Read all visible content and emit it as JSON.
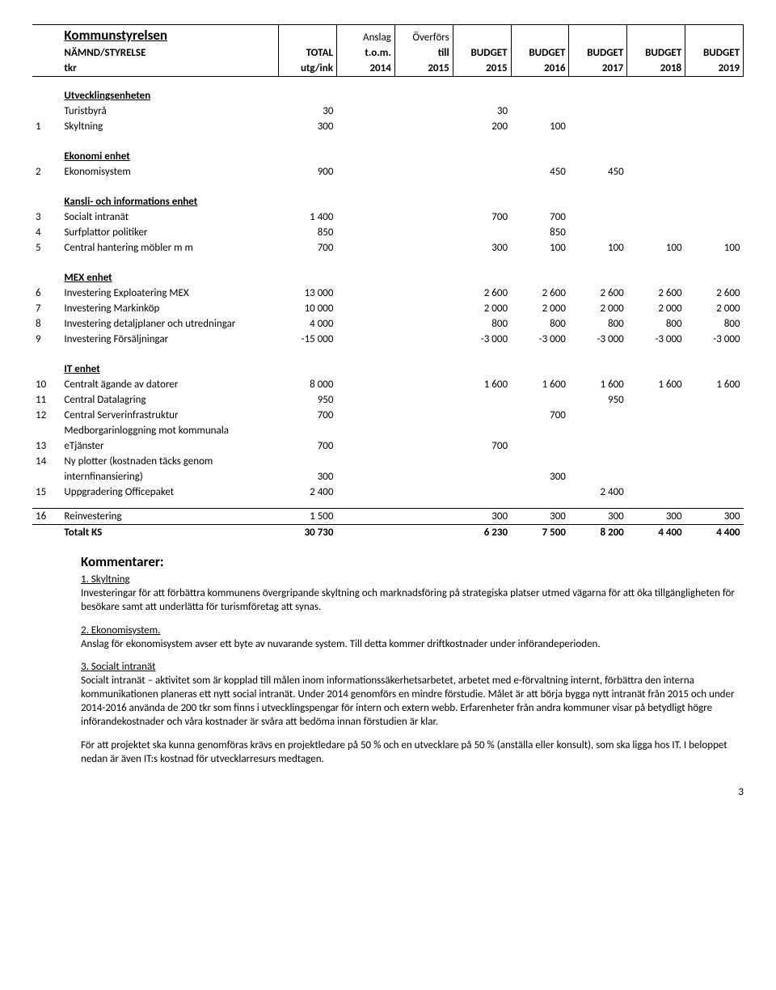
{
  "header": {
    "title": "Kommunstyrelsen",
    "col_labels": {
      "namnd": "NÄMND/STYRELSE",
      "total": "TOTAL",
      "anslag": "Anslag",
      "tom": "t.o.m.",
      "overfors": "Överförs",
      "till": "till",
      "budget": "BUDGET",
      "tkr": "tkr",
      "utgink": "utg/ink",
      "y2014": "2014",
      "y2015a": "2015",
      "y2015b": "2015",
      "y2016": "2016",
      "y2017": "2017",
      "y2018": "2018",
      "y2019": "2019"
    }
  },
  "sections": {
    "utv": {
      "head": "Utvecklingsenheten",
      "rows": [
        {
          "n": "",
          "label": "Turistbyrå",
          "v": [
            "30",
            "",
            "",
            "30",
            "",
            "",
            "",
            ""
          ]
        },
        {
          "n": "1",
          "label": "Skyltning",
          "v": [
            "300",
            "",
            "",
            "200",
            "100",
            "",
            "",
            ""
          ]
        }
      ]
    },
    "eko": {
      "head": "Ekonomi enhet",
      "rows": [
        {
          "n": "2",
          "label": "Ekonomisystem",
          "v": [
            "900",
            "",
            "",
            "",
            "450",
            "450",
            "",
            ""
          ]
        }
      ]
    },
    "kansli": {
      "head": "Kansli- och informations enhet",
      "rows": [
        {
          "n": "3",
          "label": "Socialt intranät",
          "v": [
            "1 400",
            "",
            "",
            "700",
            "700",
            "",
            "",
            ""
          ]
        },
        {
          "n": "4",
          "label": "Surfplattor politiker",
          "v": [
            "850",
            "",
            "",
            "",
            "850",
            "",
            "",
            ""
          ]
        },
        {
          "n": "5",
          "label": "Central hantering möbler m m",
          "v": [
            "700",
            "",
            "",
            "300",
            "100",
            "100",
            "100",
            "100"
          ]
        }
      ]
    },
    "mex": {
      "head": "MEX enhet",
      "rows": [
        {
          "n": "6",
          "label": "Investering Exploatering MEX",
          "v": [
            "13 000",
            "",
            "",
            "2 600",
            "2 600",
            "2 600",
            "2 600",
            "2 600"
          ]
        },
        {
          "n": "7",
          "label": "Investering Markinköp",
          "v": [
            "10 000",
            "",
            "",
            "2 000",
            "2 000",
            "2 000",
            "2 000",
            "2 000"
          ]
        },
        {
          "n": "8",
          "label": "Investering detaljplaner och utredningar",
          "v": [
            "4 000",
            "",
            "",
            "800",
            "800",
            "800",
            "800",
            "800"
          ]
        },
        {
          "n": "9",
          "label": "Investering Försäljningar",
          "v": [
            "-15 000",
            "",
            "",
            "-3 000",
            "-3 000",
            "-3 000",
            "-3 000",
            "-3 000"
          ]
        }
      ]
    },
    "it": {
      "head": "IT enhet",
      "rows": [
        {
          "n": "10",
          "label": "Centralt ägande av datorer",
          "v": [
            "8 000",
            "",
            "",
            "1 600",
            "1 600",
            "1 600",
            "1 600",
            "1 600"
          ]
        },
        {
          "n": "11",
          "label": "Central Datalagring",
          "v": [
            "950",
            "",
            "",
            "",
            "",
            "950",
            "",
            ""
          ]
        },
        {
          "n": "12",
          "label": "Central Serverinfrastruktur",
          "v": [
            "700",
            "",
            "",
            "",
            "700",
            "",
            "",
            ""
          ]
        },
        {
          "n": "",
          "label": "Medborgarinloggning mot kommunala",
          "v": [
            "",
            "",
            "",
            "",
            "",
            "",
            "",
            ""
          ]
        },
        {
          "n": "13",
          "label": "eTjänster",
          "v": [
            "700",
            "",
            "",
            "700",
            "",
            "",
            "",
            ""
          ]
        },
        {
          "n": "14",
          "label": "Ny plotter (kostnaden täcks genom",
          "v": [
            "",
            "",
            "",
            "",
            "",
            "",
            "",
            ""
          ]
        },
        {
          "n": "",
          "label": "internfinansiering)",
          "v": [
            "300",
            "",
            "",
            "",
            "300",
            "",
            "",
            ""
          ]
        },
        {
          "n": "15",
          "label": "Uppgradering Officepaket",
          "v": [
            "2 400",
            "",
            "",
            "",
            "",
            "2 400",
            "",
            ""
          ]
        }
      ]
    },
    "reinv": {
      "rows": [
        {
          "n": "16",
          "label": "Reinvestering",
          "v": [
            "1 500",
            "",
            "",
            "300",
            "300",
            "300",
            "300",
            "300"
          ]
        }
      ]
    },
    "totals": {
      "label": "Totalt KS",
      "v": [
        "30 730",
        "",
        "",
        "6 230",
        "7 500",
        "8 200",
        "4 400",
        "4 400"
      ]
    }
  },
  "comments": {
    "title": "Kommentarer:",
    "p1_head": "1. Skyltning",
    "p1": "Investeringar för att förbättra kommunens övergripande skyltning och marknadsföring på strategiska platser utmed vägarna för att öka tillgängligheten för besökare samt att underlätta för turismföretag att synas.",
    "p2_head": "2. Ekonomisystem.",
    "p2": "Anslag för ekonomisystem avser ett byte av nuvarande system. Till detta kommer driftkostnader under införandeperioden.",
    "p3_head": "3. Socialt intranät",
    "p3": "Socialt intranät – aktivitet som är kopplad till målen inom informationssäkerhetsarbetet, arbetet med e-förvaltning internt, förbättra den interna kommunikationen planeras ett nytt social intranät. Under 2014 genomförs en mindre förstudie. Målet är att börja bygga nytt intranät från 2015 och under 2014-2016 använda de 200 tkr som finns i utvecklingspengar för intern och extern webb. Erfarenheter från andra kommuner visar på betydligt högre införandekostnader och våra kostnader är svåra att bedöma innan förstudien är klar.",
    "p4": "För att projektet ska kunna genomföras krävs en projektledare på 50 % och en utvecklare på 50 % (anställa eller konsult), som ska ligga hos IT. I beloppet nedan är även IT:s kostnad för utvecklarresurs medtagen."
  },
  "page_number": "3"
}
